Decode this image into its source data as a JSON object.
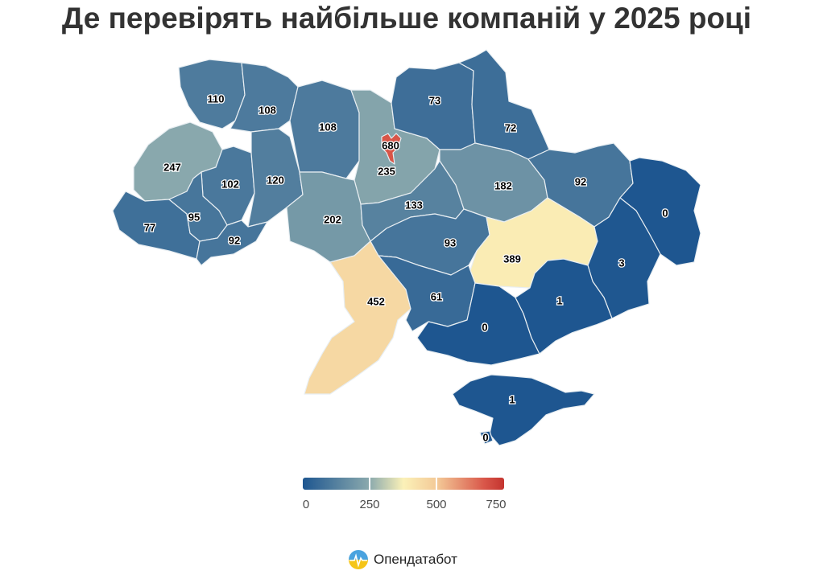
{
  "title": "Де перевірять найбільше компаній у 2025 році",
  "legend": {
    "ticks": [
      "0",
      "250",
      "500",
      "750"
    ],
    "min": 0,
    "max": 750
  },
  "brand": {
    "name": "Опендатабот"
  },
  "regions": [
    {
      "id": "volyn",
      "value": 110
    },
    {
      "id": "rivne",
      "value": 108
    },
    {
      "id": "zhytomyr",
      "value": 108
    },
    {
      "id": "kyiv-oblast",
      "value": 235
    },
    {
      "id": "kyiv-city",
      "value": 680
    },
    {
      "id": "chernihiv",
      "value": 73
    },
    {
      "id": "sumy",
      "value": 72
    },
    {
      "id": "lviv",
      "value": 247
    },
    {
      "id": "ternopil",
      "value": 102
    },
    {
      "id": "khmelnytskyi",
      "value": 120
    },
    {
      "id": "vinnytsia",
      "value": 202
    },
    {
      "id": "cherkasy",
      "value": 133
    },
    {
      "id": "poltava",
      "value": 182
    },
    {
      "id": "kharkiv",
      "value": 92
    },
    {
      "id": "luhansk",
      "value": 0
    },
    {
      "id": "zakarpattia",
      "value": 77
    },
    {
      "id": "ivano-frankivsk",
      "value": 95
    },
    {
      "id": "chernivtsi",
      "value": 92
    },
    {
      "id": "kirovohrad",
      "value": 93
    },
    {
      "id": "dnipropetrovsk",
      "value": 389
    },
    {
      "id": "donetsk",
      "value": 3
    },
    {
      "id": "odesa",
      "value": 452
    },
    {
      "id": "mykolaiv",
      "value": 61
    },
    {
      "id": "kherson",
      "value": 0
    },
    {
      "id": "zaporizhzhia",
      "value": 1
    },
    {
      "id": "crimea",
      "value": 1
    },
    {
      "id": "sevastopol",
      "value": 0
    }
  ]
}
